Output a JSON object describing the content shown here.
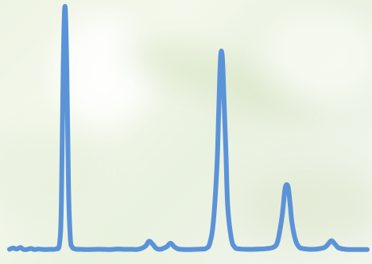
{
  "chart_data": {
    "type": "line",
    "title": "",
    "xlabel": "",
    "ylabel": "",
    "grid": false,
    "legend": "none",
    "xlim": [
      0,
      100
    ],
    "ylim": [
      0,
      100
    ],
    "series": [
      {
        "color": "#5b93d8",
        "x": [
          0,
          1,
          2,
          3,
          4,
          5,
          6,
          7,
          8,
          9,
          10,
          11,
          12,
          13,
          14,
          14.5,
          15,
          15.5,
          16,
          16.5,
          17,
          17.5,
          18,
          19,
          20,
          22,
          24,
          26,
          28,
          30,
          32,
          34,
          36,
          38,
          39,
          40,
          41,
          42,
          43,
          44,
          45,
          46,
          47,
          48,
          50,
          52,
          54,
          55,
          56,
          57,
          58,
          58.5,
          59,
          59.5,
          60,
          60.5,
          61,
          62,
          63,
          64,
          66,
          68,
          70,
          72,
          74,
          75,
          76,
          76.5,
          77,
          77.5,
          78,
          78.5,
          79,
          80,
          81,
          82,
          84,
          86,
          88,
          89,
          90,
          91,
          92,
          94,
          96,
          98,
          100
        ],
        "y": [
          0.5,
          1.0,
          0.6,
          1.2,
          0.4,
          0.5,
          0.8,
          0.4,
          0.6,
          0.5,
          0.4,
          0.5,
          0.5,
          0.7,
          3,
          20,
          75,
          100,
          75,
          25,
          5,
          1.5,
          0.8,
          0.5,
          0.5,
          0.4,
          0.5,
          0.5,
          0.4,
          0.6,
          0.5,
          0.5,
          0.5,
          1.8,
          3.8,
          2.6,
          0.9,
          0.5,
          0.9,
          1.6,
          3.0,
          1.6,
          0.7,
          0.5,
          0.4,
          0.5,
          0.6,
          0.9,
          3,
          12,
          35,
          58,
          79,
          79,
          60,
          40,
          18,
          5,
          1.3,
          0.7,
          0.5,
          0.5,
          0.6,
          0.8,
          1.5,
          4,
          12,
          18,
          25,
          27,
          25,
          18,
          11,
          4,
          1.4,
          0.8,
          0.5,
          0.6,
          1.2,
          2.5,
          4,
          2.6,
          1.1,
          0.5,
          0.4,
          0.4,
          0.4
        ]
      }
    ]
  }
}
